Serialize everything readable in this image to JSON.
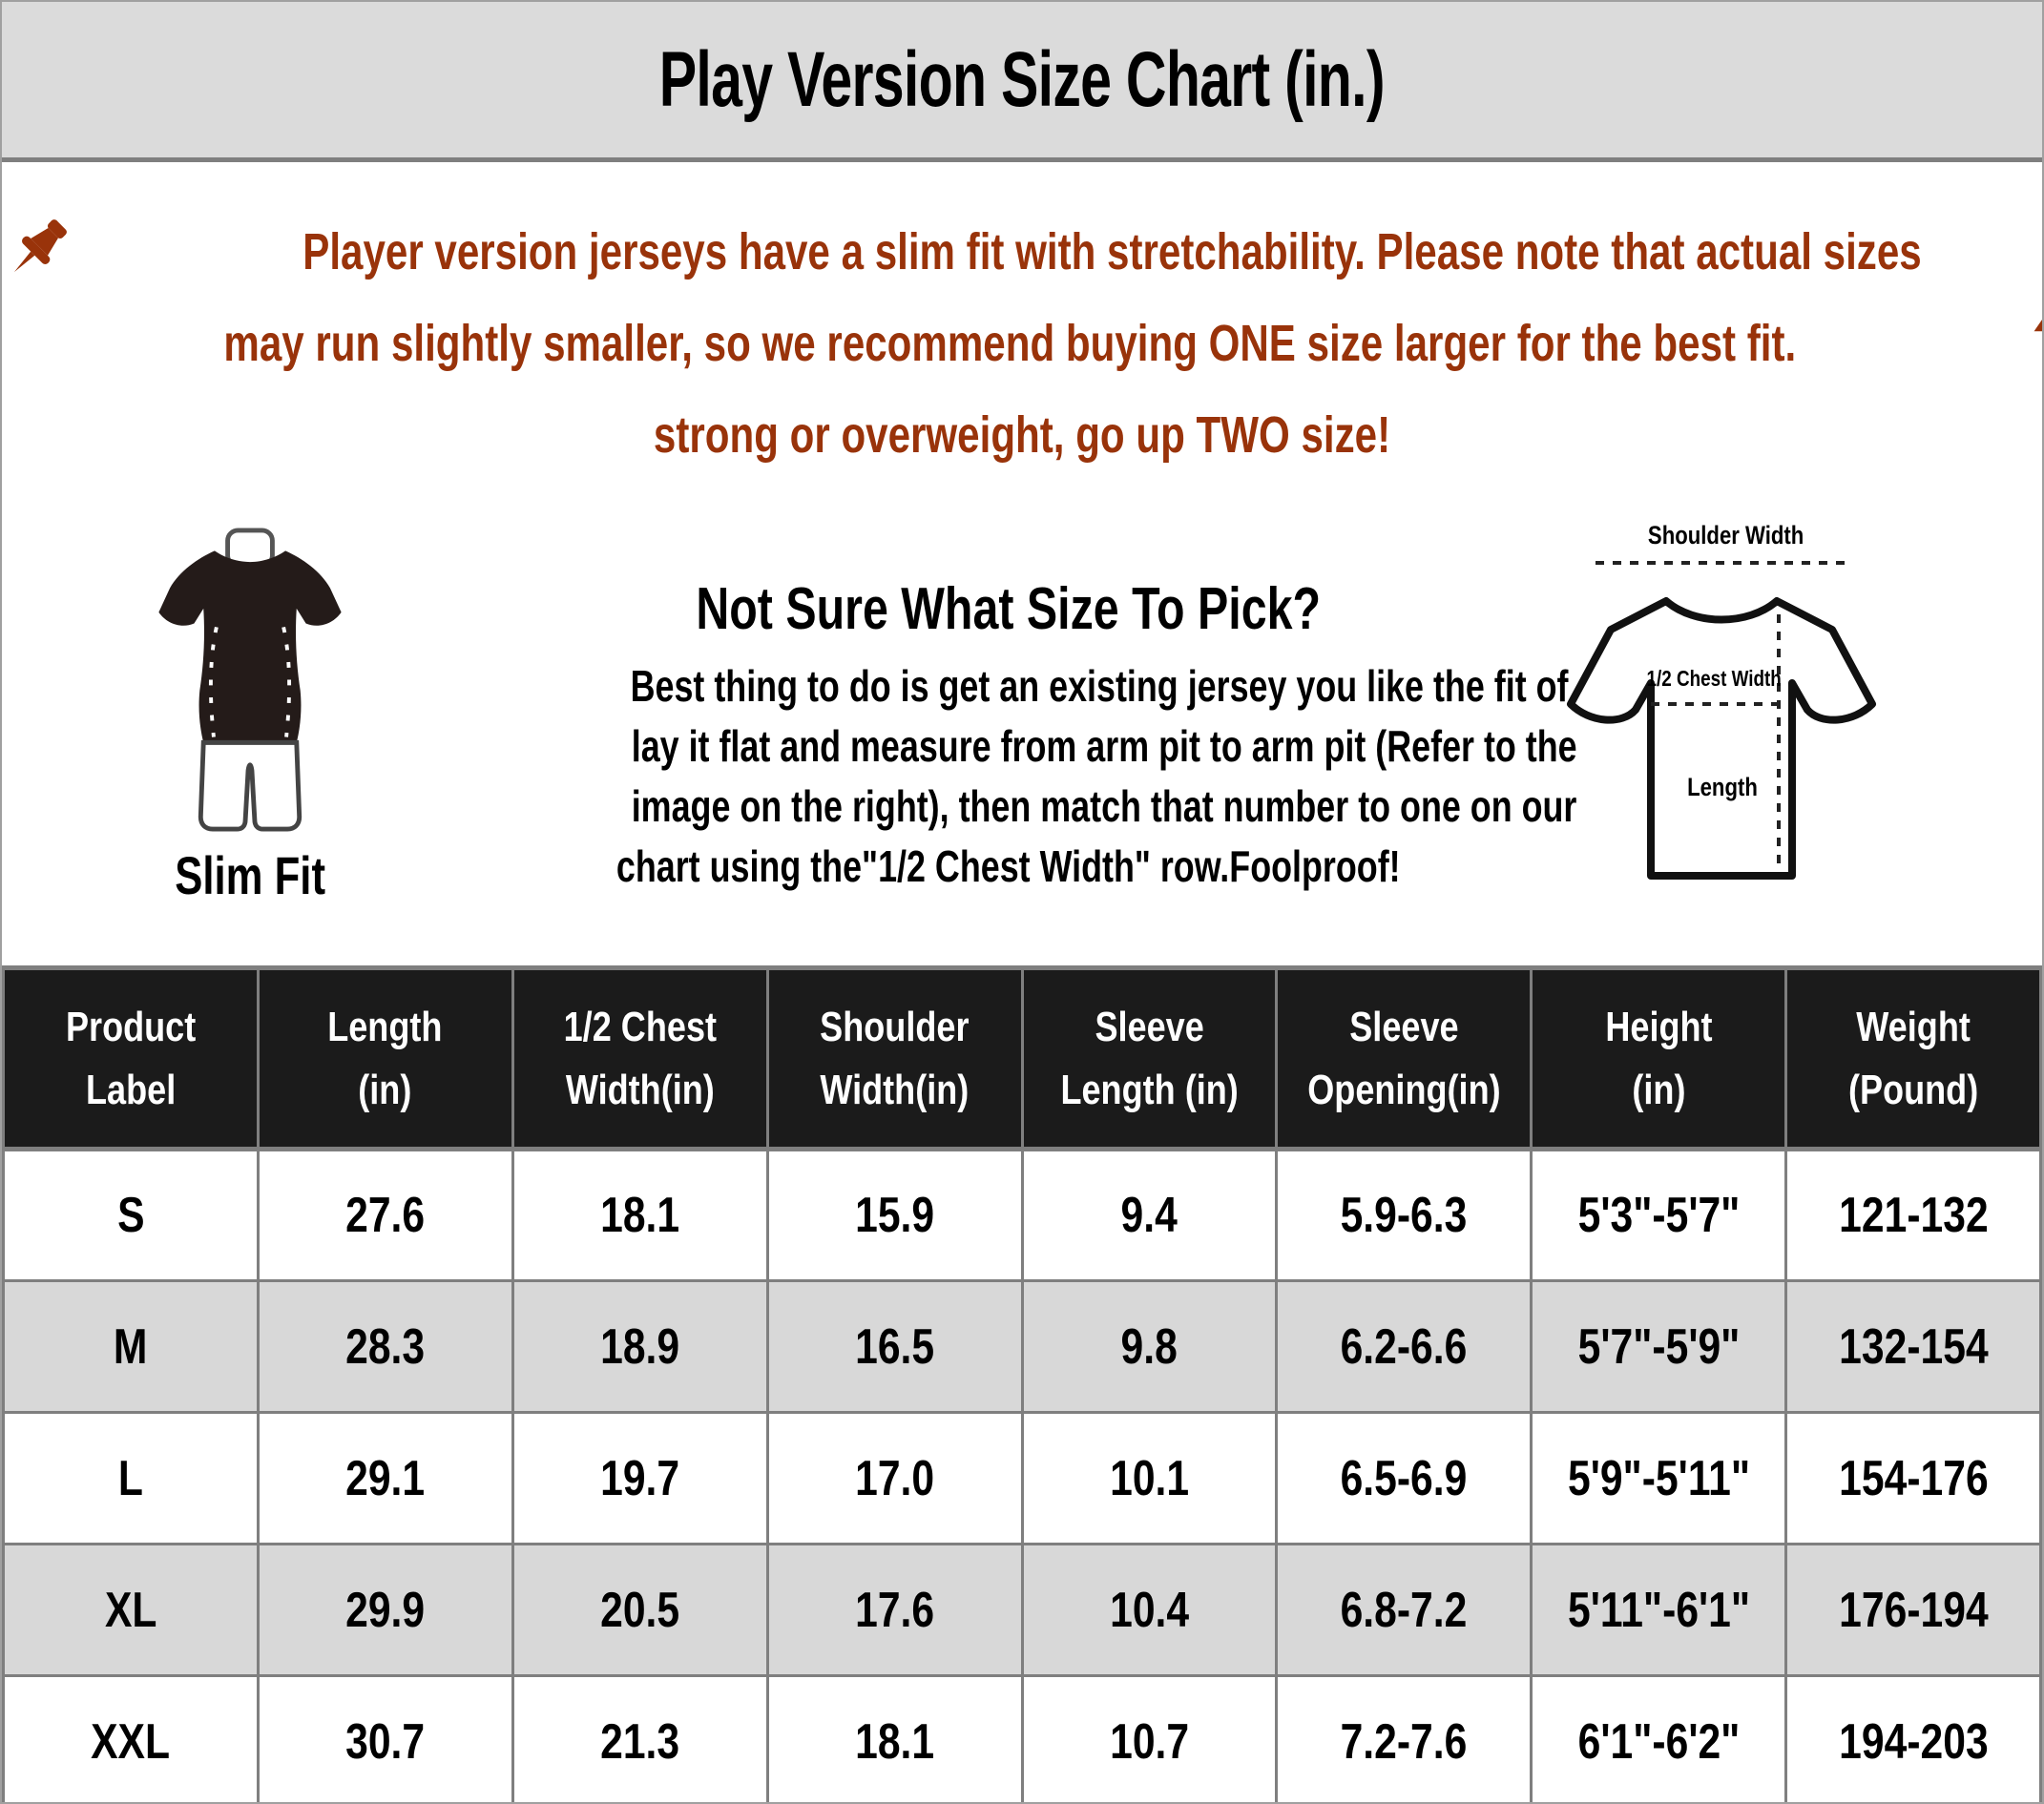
{
  "title": "Play Version Size Chart (in.)",
  "note": {
    "lines": [
      "Player version jerseys have a slim fit with stretchability. Please note that actual sizes",
      "may run slightly smaller, so we recommend buying ONE size larger for the best fit.",
      "strong or overweight, go up TWO size!"
    ],
    "icons": [
      "pushpin-icon",
      "up-arrow-icon",
      "up-arrow-icon"
    ]
  },
  "fit": {
    "label": "Slim Fit",
    "icon": "slim-fit-figure-icon"
  },
  "guide": {
    "heading": "Not Sure What Size To Pick?",
    "lines": [
      "Best thing to do is get an existing jersey you like the fit of",
      "lay it flat and measure from arm pit to arm pit (Refer to the",
      "image on the right), then match that number to one on our",
      "chart using the\"1/2 Chest Width\" row.Foolproof!"
    ]
  },
  "diagram": {
    "shoulder_label": "Shoulder Width",
    "chest_label": "1/2 Chest Width",
    "length_label": "Length"
  },
  "table": {
    "headers": [
      [
        "Product",
        "Label"
      ],
      [
        "Length",
        "(in)"
      ],
      [
        "1/2 Chest",
        "Width(in)"
      ],
      [
        "Shoulder",
        "Width(in)"
      ],
      [
        "Sleeve",
        "Length (in)"
      ],
      [
        "Sleeve",
        "Opening(in)"
      ],
      [
        "Height",
        "(in)"
      ],
      [
        "Weight",
        "(Pound)"
      ]
    ],
    "rows": [
      [
        "S",
        "27.6",
        "18.1",
        "15.9",
        "9.4",
        "5.9-6.3",
        "5'3\"-5'7\"",
        "121-132"
      ],
      [
        "M",
        "28.3",
        "18.9",
        "16.5",
        "9.8",
        "6.2-6.6",
        "5'7\"-5'9\"",
        "132-154"
      ],
      [
        "L",
        "29.1",
        "19.7",
        "17.0",
        "10.1",
        "6.5-6.9",
        "5'9\"-5'11\"",
        "154-176"
      ],
      [
        "XL",
        "29.9",
        "20.5",
        "17.6",
        "10.4",
        "6.8-7.2",
        "5'11\"-6'1\"",
        "176-194"
      ],
      [
        "XXL",
        "30.7",
        "21.3",
        "18.1",
        "10.7",
        "7.2-7.6",
        "6'1\"-6'2\"",
        "194-203"
      ]
    ]
  },
  "chart_data": {
    "type": "table",
    "title": "Play Version Size Chart (in.)",
    "columns": [
      "Product Label",
      "Length (in)",
      "1/2 Chest Width(in)",
      "Shoulder Width(in)",
      "Sleeve Length (in)",
      "Sleeve Opening(in)",
      "Height (in)",
      "Weight (Pound)"
    ],
    "rows": [
      [
        "S",
        "27.6",
        "18.1",
        "15.9",
        "9.4",
        "5.9-6.3",
        "5'3\"-5'7\"",
        "121-132"
      ],
      [
        "M",
        "28.3",
        "18.9",
        "16.5",
        "9.8",
        "6.2-6.6",
        "5'7\"-5'9\"",
        "132-154"
      ],
      [
        "L",
        "29.1",
        "19.7",
        "17.0",
        "10.1",
        "6.5-6.9",
        "5'9\"-5'11\"",
        "154-176"
      ],
      [
        "XL",
        "29.9",
        "20.5",
        "17.6",
        "10.4",
        "6.8-7.2",
        "5'11\"-6'1\"",
        "176-194"
      ],
      [
        "XXL",
        "30.7",
        "21.3",
        "18.1",
        "10.7",
        "7.2-7.6",
        "6'1\"-6'2\"",
        "194-203"
      ]
    ]
  },
  "colors": {
    "accent_rust": "#99330a",
    "title_bar_bg": "#dbdbdb",
    "table_header_bg": "#1b1b1b",
    "row_alt_bg": "#d8d8d8",
    "grid_line": "#7f7f7f"
  }
}
